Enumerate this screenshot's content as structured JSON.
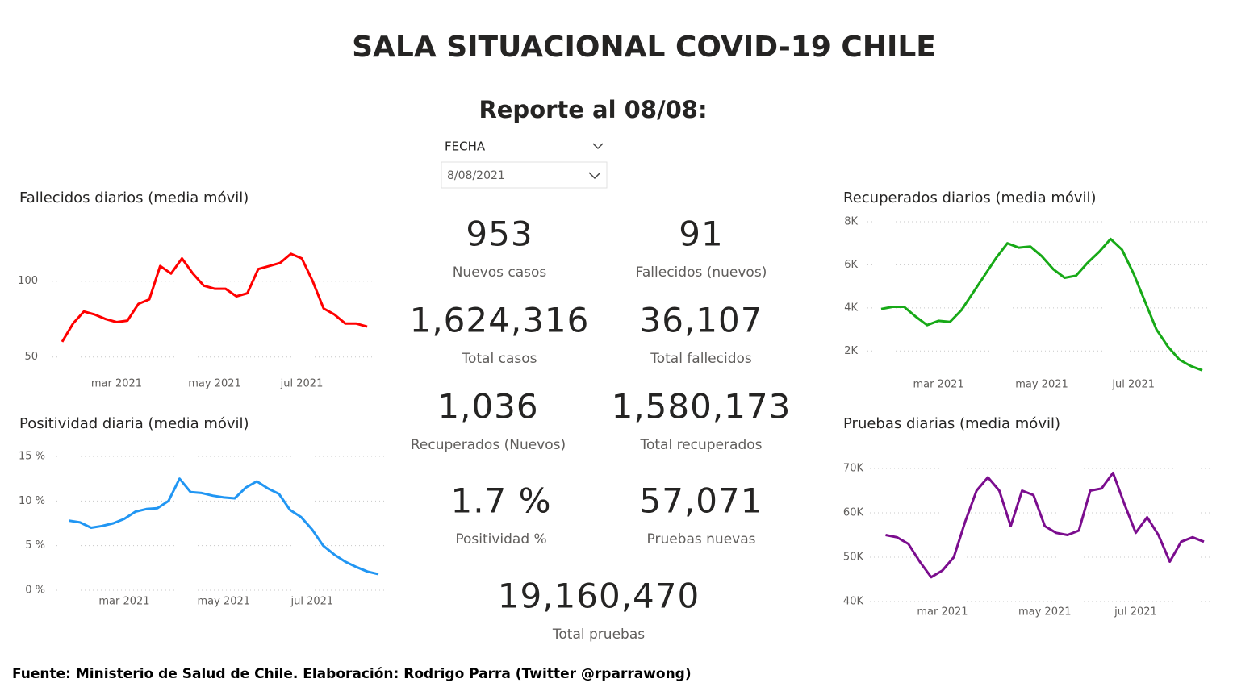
{
  "header": {
    "title": "SALA SITUACIONAL COVID-19 CHILE",
    "subtitle": "Reporte al 08/08:"
  },
  "filter": {
    "label": "FECHA",
    "value": "8/08/2021"
  },
  "kpis": [
    {
      "value": "953",
      "label": "Nuevos casos"
    },
    {
      "value": "91",
      "label": "Fallecidos (nuevos)"
    },
    {
      "value": "1,624,316",
      "label": "Total casos"
    },
    {
      "value": "36,107",
      "label": "Total fallecidos"
    },
    {
      "value": "1,036",
      "label": "Recuperados (Nuevos)"
    },
    {
      "value": "1,580,173",
      "label": "Total recuperados"
    },
    {
      "value": "1.7 %",
      "label": "Positividad %"
    },
    {
      "value": "57,071",
      "label": "Pruebas nuevas"
    },
    {
      "value": "19,160,470",
      "label": "Total pruebas"
    }
  ],
  "chart_data": [
    {
      "type": "line",
      "title": "Fallecidos diarios (media móvil)",
      "color": "#ff0000",
      "grid": true,
      "categories": [
        null,
        null,
        null,
        null,
        null,
        "mar 2021",
        null,
        null,
        null,
        null,
        null,
        null,
        null,
        null,
        "may 2021",
        null,
        null,
        null,
        null,
        null,
        null,
        null,
        "jul 2021",
        null,
        null,
        null,
        null,
        null,
        null
      ],
      "values": [
        60,
        72,
        80,
        78,
        75,
        73,
        74,
        85,
        88,
        110,
        105,
        115,
        105,
        97,
        95,
        95,
        90,
        92,
        108,
        110,
        112,
        118,
        115,
        100,
        82,
        78,
        72,
        72,
        70
      ],
      "ylim": [
        44,
        136
      ],
      "yticks": [
        50,
        100
      ]
    },
    {
      "type": "line",
      "title": "Positividad diaria (media móvil)",
      "color": "#2196f3",
      "grid": true,
      "categories": [
        null,
        null,
        null,
        null,
        null,
        "mar 2021",
        null,
        null,
        null,
        null,
        null,
        null,
        null,
        null,
        "may 2021",
        null,
        null,
        null,
        null,
        null,
        null,
        null,
        "jul 2021",
        null,
        null,
        null,
        null,
        null,
        null
      ],
      "values": [
        7.8,
        7.6,
        7.0,
        7.2,
        7.5,
        8.0,
        8.8,
        9.1,
        9.2,
        10.0,
        12.5,
        11.0,
        10.9,
        10.6,
        10.4,
        10.3,
        11.5,
        12.2,
        11.4,
        10.8,
        9.0,
        8.2,
        6.8,
        5.0,
        4.0,
        3.2,
        2.6,
        2.1,
        1.8
      ],
      "ylim": [
        0,
        15
      ],
      "yticks": [
        {
          "value": 0,
          "label": "0 %"
        },
        {
          "value": 5,
          "label": "5 %"
        },
        {
          "value": 10,
          "label": "10 %"
        },
        {
          "value": 15,
          "label": "15 %"
        }
      ]
    },
    {
      "type": "line",
      "title": "Recuperados diarios (media móvil)",
      "color": "#17a917",
      "grid": true,
      "categories": [
        null,
        null,
        null,
        null,
        null,
        "mar 2021",
        null,
        null,
        null,
        null,
        null,
        null,
        null,
        null,
        "may 2021",
        null,
        null,
        null,
        null,
        null,
        null,
        null,
        "jul 2021",
        null,
        null,
        null,
        null,
        null,
        null
      ],
      "values": [
        3950,
        4050,
        4050,
        3600,
        3200,
        3400,
        3350,
        3900,
        4700,
        5500,
        6300,
        7000,
        6800,
        6850,
        6400,
        5800,
        5400,
        5500,
        6100,
        6600,
        7200,
        6700,
        5600,
        4300,
        3000,
        2200,
        1600,
        1300,
        1100
      ],
      "ylim": [
        1000,
        8000
      ],
      "yticks": [
        {
          "value": 2000,
          "label": "2K"
        },
        {
          "value": 4000,
          "label": "4K"
        },
        {
          "value": 6000,
          "label": "6K"
        },
        {
          "value": 8000,
          "label": "8K"
        }
      ]
    },
    {
      "type": "line",
      "title": "Pruebas diarias (media móvil)",
      "color": "#7b0d8e",
      "grid": true,
      "categories": [
        null,
        null,
        null,
        null,
        null,
        "mar 2021",
        null,
        null,
        null,
        null,
        null,
        null,
        null,
        null,
        "may 2021",
        null,
        null,
        null,
        null,
        null,
        null,
        null,
        "jul 2021",
        null,
        null,
        null,
        null,
        null,
        null
      ],
      "values": [
        55000,
        54500,
        53000,
        49000,
        45500,
        47000,
        50000,
        58000,
        65000,
        68000,
        65000,
        57000,
        65000,
        64000,
        57000,
        55500,
        55000,
        56000,
        65000,
        65500,
        69000,
        62000,
        55500,
        59000,
        55000,
        49000,
        53500,
        54500,
        53500
      ],
      "ylim": [
        40000,
        72000
      ],
      "yticks": [
        {
          "value": 40000,
          "label": "40K"
        },
        {
          "value": 50000,
          "label": "50K"
        },
        {
          "value": 60000,
          "label": "60K"
        },
        {
          "value": 70000,
          "label": "70K"
        }
      ]
    }
  ],
  "footer": "Fuente: Ministerio de Salud de Chile. Elaboración: Rodrigo Parra (Twitter @rparrawong)"
}
